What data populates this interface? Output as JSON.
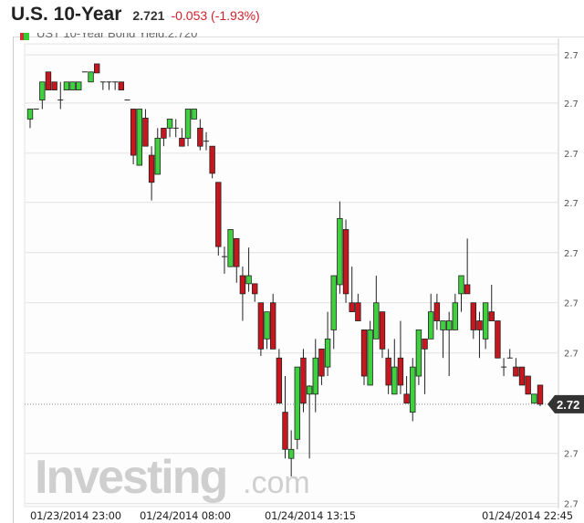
{
  "header": {
    "title": "U.S. 10-Year",
    "price": "2.721",
    "change": "-0.053 (-1.93%)"
  },
  "legend": {
    "text": "UST 10-Year Bond Yield:2.720"
  },
  "watermark": {
    "text": "Investing",
    "suffix": ".com"
  },
  "colors": {
    "up": "#3fcf3f",
    "down": "#c8161e",
    "change_negative": "#d0202a",
    "price_tag": "#333333"
  },
  "chart_data": {
    "type": "candlestick",
    "ylim": [
      2.7108,
      2.7569
    ],
    "grid": true,
    "current_price": 2.721,
    "current_price_label": "2.72",
    "yticks": [
      {
        "value": 2.7558,
        "label": "2.7"
      },
      {
        "value": 2.751,
        "label": "2.7"
      },
      {
        "value": 2.746,
        "label": "2.7"
      },
      {
        "value": 2.7411,
        "label": "2.7"
      },
      {
        "value": 2.7361,
        "label": "2.7"
      },
      {
        "value": 2.7311,
        "label": "2.7"
      },
      {
        "value": 2.7261,
        "label": "2.7"
      },
      {
        "value": 2.7161,
        "label": "2.7"
      },
      {
        "value": 2.7111,
        "label": "2.7"
      }
    ],
    "xlabels": [
      "01/23/2014 23:00",
      "01/24/2014 08:00",
      "01/24/2014 13:15",
      "01/24/2014 22:45"
    ],
    "candles": [
      [
        2.7494,
        2.7504,
        2.7485,
        2.7504
      ],
      [
        2.7504,
        2.7504,
        2.7504,
        2.7504
      ],
      [
        2.7513,
        2.7531,
        2.7504,
        2.7531
      ],
      [
        2.7541,
        2.7541,
        2.7523,
        2.7523
      ],
      [
        2.7531,
        2.7531,
        2.7523,
        2.7523
      ],
      [
        2.7513,
        2.7531,
        2.7504,
        2.7513
      ],
      [
        2.7523,
        2.7531,
        2.7523,
        2.7531
      ],
      [
        2.7523,
        2.7531,
        2.7523,
        2.7531
      ],
      [
        2.7523,
        2.7531,
        2.7523,
        2.7531
      ],
      [
        2.7541,
        2.7541,
        2.7541,
        2.7541
      ],
      [
        2.7531,
        2.7541,
        2.7531,
        2.7541
      ],
      [
        2.7549,
        2.7549,
        2.754,
        2.754
      ],
      [
        2.7531,
        2.7531,
        2.7523,
        2.7531
      ],
      [
        2.7531,
        2.7531,
        2.7523,
        2.7531
      ],
      [
        2.7531,
        2.7531,
        2.7523,
        2.7531
      ],
      [
        2.7531,
        2.7531,
        2.7523,
        2.7523
      ],
      [
        2.7513,
        2.7513,
        2.7513,
        2.7513
      ],
      [
        2.7504,
        2.7504,
        2.7449,
        2.7458
      ],
      [
        2.7448,
        2.7504,
        2.7448,
        2.7504
      ],
      [
        2.7495,
        2.7504,
        2.7467,
        2.7467
      ],
      [
        2.7458,
        2.7467,
        2.7413,
        2.7431
      ],
      [
        2.7439,
        2.7485,
        2.7439,
        2.7475
      ],
      [
        2.7485,
        2.7485,
        2.7467,
        2.7475
      ],
      [
        2.7485,
        2.7494,
        2.7476,
        2.7494
      ],
      [
        2.7485,
        2.7494,
        2.7476,
        2.7485
      ],
      [
        2.7475,
        2.7485,
        2.7467,
        2.7467
      ],
      [
        2.7475,
        2.7504,
        2.7467,
        2.7504
      ],
      [
        2.7494,
        2.7504,
        2.7494,
        2.7504
      ],
      [
        2.7485,
        2.7494,
        2.7463,
        2.7467
      ],
      [
        2.7472,
        2.7481,
        2.7463,
        2.7472
      ],
      [
        2.7467,
        2.7467,
        2.7435,
        2.744
      ],
      [
        2.7431,
        2.7431,
        2.7358,
        2.7367
      ],
      [
        2.7357,
        2.7367,
        2.734,
        2.7357
      ],
      [
        2.7347,
        2.7384,
        2.7347,
        2.7384
      ],
      [
        2.7375,
        2.7375,
        2.7331,
        2.7347
      ],
      [
        2.7338,
        2.7347,
        2.7293,
        2.732
      ],
      [
        2.733,
        2.7366,
        2.7322,
        2.7338
      ],
      [
        2.733,
        2.733,
        2.7312,
        2.732
      ],
      [
        2.7311,
        2.7311,
        2.7258,
        2.7265
      ],
      [
        2.7275,
        2.7302,
        2.7265,
        2.7302
      ],
      [
        2.7311,
        2.732,
        2.7265,
        2.7265
      ],
      [
        2.7256,
        2.7265,
        2.7211,
        2.7211
      ],
      [
        2.7202,
        2.7238,
        2.7156,
        2.7165
      ],
      [
        2.7156,
        2.7184,
        2.7138,
        2.7165
      ],
      [
        2.7175,
        2.7247,
        2.7165,
        2.7247
      ],
      [
        2.7256,
        2.7265,
        2.7202,
        2.7211
      ],
      [
        2.722,
        2.7229,
        2.7156,
        2.7228
      ],
      [
        2.722,
        2.7275,
        2.7202,
        2.7256
      ],
      [
        2.7265,
        2.7265,
        2.7229,
        2.7238
      ],
      [
        2.7247,
        2.7302,
        2.7238,
        2.7275
      ],
      [
        2.7284,
        2.7338,
        2.7265,
        2.7338
      ],
      [
        2.7329,
        2.7412,
        2.732,
        2.7395
      ],
      [
        2.7384,
        2.7394,
        2.7311,
        2.732
      ],
      [
        2.7311,
        2.7347,
        2.7302,
        2.7302
      ],
      [
        2.7311,
        2.732,
        2.7293,
        2.7293
      ],
      [
        2.7284,
        2.7284,
        2.7229,
        2.7238
      ],
      [
        2.7229,
        2.7293,
        2.7229,
        2.7284
      ],
      [
        2.7275,
        2.7338,
        2.7275,
        2.7311
      ],
      [
        2.7302,
        2.7302,
        2.7256,
        2.7265
      ],
      [
        2.7256,
        2.7265,
        2.722,
        2.7229
      ],
      [
        2.722,
        2.7275,
        2.722,
        2.7247
      ],
      [
        2.7256,
        2.7293,
        2.722,
        2.7229
      ],
      [
        2.722,
        2.7238,
        2.7211,
        2.7211
      ],
      [
        2.7202,
        2.7256,
        2.7193,
        2.7247
      ],
      [
        2.7238,
        2.7284,
        2.7229,
        2.7284
      ],
      [
        2.7275,
        2.7275,
        2.722,
        2.7265
      ],
      [
        2.7275,
        2.732,
        2.7275,
        2.7302
      ],
      [
        2.7311,
        2.732,
        2.7284,
        2.7293
      ],
      [
        2.7284,
        2.7293,
        2.7256,
        2.7293
      ],
      [
        2.7284,
        2.7302,
        2.7238,
        2.7293
      ],
      [
        2.7284,
        2.732,
        2.7284,
        2.7311
      ],
      [
        2.732,
        2.7338,
        2.7302,
        2.7338
      ],
      [
        2.7329,
        2.7375,
        2.732,
        2.732
      ],
      [
        2.7311,
        2.7311,
        2.7275,
        2.7284
      ],
      [
        2.7293,
        2.7302,
        2.7256,
        2.7284
      ],
      [
        2.7275,
        2.7311,
        2.7265,
        2.7311
      ],
      [
        2.7302,
        2.7329,
        2.7293,
        2.7293
      ],
      [
        2.7293,
        2.7293,
        2.7256,
        2.7256
      ],
      [
        2.7247,
        2.7256,
        2.7238,
        2.7247
      ],
      [
        2.7256,
        2.7265,
        2.7256,
        2.7256
      ],
      [
        2.7247,
        2.7256,
        2.7238,
        2.7238
      ],
      [
        2.7247,
        2.7247,
        2.7229,
        2.7229
      ],
      [
        2.7238,
        2.7238,
        2.722,
        2.722
      ],
      [
        2.7211,
        2.722,
        2.7211,
        2.722
      ],
      [
        2.7229,
        2.7229,
        2.7208,
        2.721
      ]
    ]
  }
}
